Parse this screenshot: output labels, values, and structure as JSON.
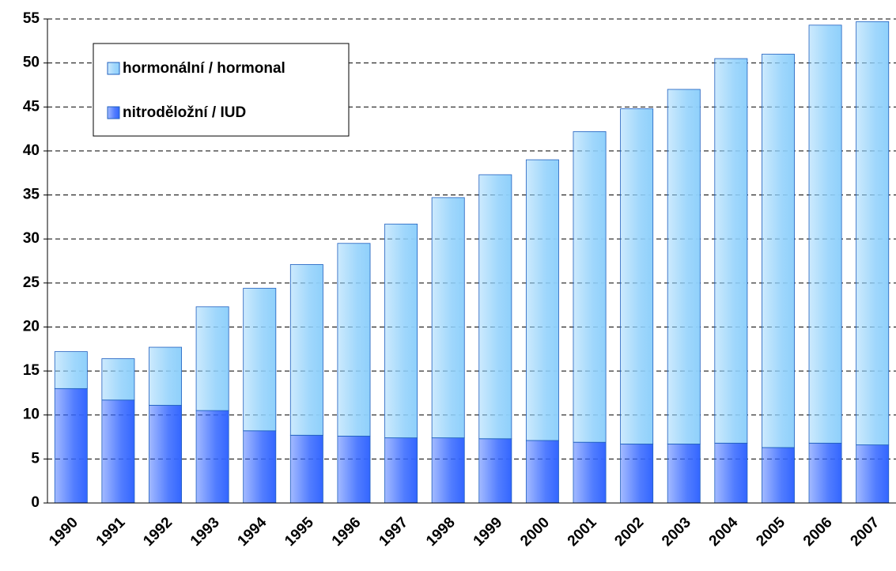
{
  "chart_data": {
    "type": "stacked_bar",
    "categories": [
      "1990",
      "1991",
      "1992",
      "1993",
      "1994",
      "1995",
      "1996",
      "1997",
      "1998",
      "1999",
      "2000",
      "2001",
      "2002",
      "2003",
      "2004",
      "2005",
      "2006",
      "2007"
    ],
    "series": [
      {
        "name": "nitroděložní / IUD",
        "color": "#3366ff",
        "values": [
          13.0,
          11.7,
          11.1,
          10.5,
          8.2,
          7.7,
          7.6,
          7.4,
          7.4,
          7.3,
          7.1,
          6.9,
          6.7,
          6.7,
          6.8,
          6.3,
          6.8,
          6.6
        ]
      },
      {
        "name": "hormonální / hormonal",
        "color": "#8fd0fb",
        "values": [
          4.2,
          4.7,
          6.6,
          11.8,
          16.2,
          19.4,
          21.9,
          24.3,
          27.3,
          30.0,
          31.9,
          35.3,
          38.1,
          40.3,
          43.7,
          44.7,
          47.5,
          48.1
        ]
      }
    ],
    "ylim": [
      0,
      55
    ],
    "yticks": [
      0,
      5,
      10,
      15,
      20,
      25,
      30,
      35,
      40,
      45,
      50,
      55
    ],
    "grid": true,
    "legend": "upper left"
  }
}
